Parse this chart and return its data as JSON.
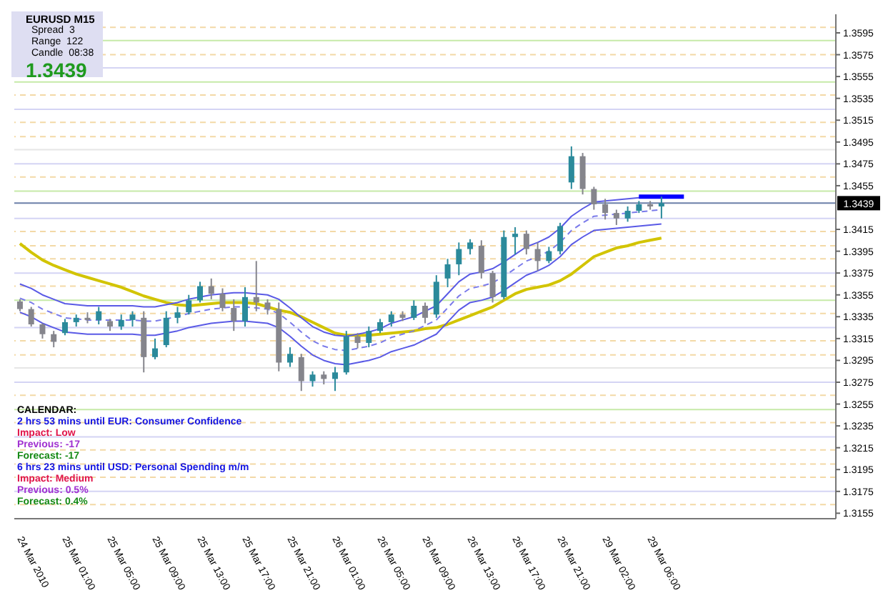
{
  "chart_data": {
    "type": "candlestick",
    "categories": [
      "24 Mar 2010",
      null,
      null,
      null,
      "25 Mar 01:00",
      null,
      null,
      null,
      "25 Mar 05:00",
      null,
      null,
      null,
      "25 Mar 09:00",
      null,
      null,
      null,
      "25 Mar 13:00",
      null,
      null,
      null,
      "25 Mar 17:00",
      null,
      null,
      null,
      "25 Mar 21:00",
      null,
      null,
      null,
      "26 Mar 01:00",
      null,
      null,
      null,
      "26 Mar 05:00",
      null,
      null,
      null,
      "26 Mar 09:00",
      null,
      null,
      null,
      "26 Mar 13:00",
      null,
      null,
      null,
      "26 Mar 17:00",
      null,
      null,
      null,
      "26 Mar 21:00",
      null,
      null,
      null,
      "29 Mar 02:00",
      null,
      null,
      null,
      "29 Mar 06:00",
      null,
      null,
      null,
      null,
      null,
      null,
      null,
      null,
      null,
      null,
      null,
      null,
      null,
      null,
      null,
      null
    ],
    "ohlc": [
      [
        1.3349,
        1.3351,
        1.334,
        1.3342
      ],
      [
        1.3342,
        1.3344,
        1.3326,
        1.3328
      ],
      [
        1.3328,
        1.3329,
        1.3315,
        1.3319
      ],
      [
        1.3319,
        1.3322,
        1.3307,
        1.3312
      ],
      [
        1.332,
        1.3333,
        1.3318,
        1.333
      ],
      [
        1.333,
        1.3337,
        1.3326,
        1.3334
      ],
      [
        1.3334,
        1.3339,
        1.3329,
        1.3332
      ],
      [
        1.3332,
        1.3344,
        1.3328,
        1.334
      ],
      [
        1.3331,
        1.3333,
        1.3322,
        1.3326
      ],
      [
        1.3326,
        1.3337,
        1.3323,
        1.3332
      ],
      [
        1.3332,
        1.334,
        1.3326,
        1.3337
      ],
      [
        1.3334,
        1.334,
        1.3284,
        1.3298
      ],
      [
        1.3298,
        1.3315,
        1.3296,
        1.3306
      ],
      [
        1.3309,
        1.334,
        1.3307,
        1.3334
      ],
      [
        1.3334,
        1.3344,
        1.3329,
        1.3339
      ],
      [
        1.3339,
        1.3355,
        1.3337,
        1.335
      ],
      [
        1.335,
        1.3367,
        1.3348,
        1.3363
      ],
      [
        1.3363,
        1.337,
        1.3351,
        1.3356
      ],
      [
        1.3356,
        1.3361,
        1.334,
        1.3343
      ],
      [
        1.3343,
        1.3351,
        1.3322,
        1.3331
      ],
      [
        1.3331,
        1.3362,
        1.3326,
        1.3353
      ],
      [
        1.3353,
        1.3386,
        1.334,
        1.3348
      ],
      [
        1.3348,
        1.3351,
        1.3337,
        1.3342
      ],
      [
        1.3342,
        1.3348,
        1.3285,
        1.3293
      ],
      [
        1.3293,
        1.3307,
        1.3289,
        1.3301
      ],
      [
        1.3298,
        1.3301,
        1.3267,
        1.3276
      ],
      [
        1.3276,
        1.3285,
        1.3271,
        1.3282
      ],
      [
        1.3282,
        1.3285,
        1.3273,
        1.3278
      ],
      [
        1.3278,
        1.3289,
        1.3267,
        1.3284
      ],
      [
        1.3284,
        1.3322,
        1.3282,
        1.3317
      ],
      [
        1.3317,
        1.332,
        1.3306,
        1.3311
      ],
      [
        1.3311,
        1.3326,
        1.3307,
        1.3322
      ],
      [
        1.3322,
        1.3333,
        1.332,
        1.333
      ],
      [
        1.333,
        1.334,
        1.3326,
        1.3337
      ],
      [
        1.3337,
        1.334,
        1.3331,
        1.3334
      ],
      [
        1.3334,
        1.335,
        1.3332,
        1.3345
      ],
      [
        1.3345,
        1.3348,
        1.3329,
        1.3334
      ],
      [
        1.3337,
        1.3373,
        1.3334,
        1.3367
      ],
      [
        1.337,
        1.3388,
        1.3362,
        1.3383
      ],
      [
        1.3383,
        1.3403,
        1.3373,
        1.3397
      ],
      [
        1.3397,
        1.3406,
        1.3392,
        1.3403
      ],
      [
        1.34,
        1.3405,
        1.337,
        1.3375
      ],
      [
        1.3375,
        1.3377,
        1.3348,
        1.3353
      ],
      [
        1.3353,
        1.3414,
        1.3351,
        1.3408
      ],
      [
        1.3408,
        1.3417,
        1.3392,
        1.3411
      ],
      [
        1.3411,
        1.3414,
        1.3392,
        1.3397
      ],
      [
        1.3397,
        1.3403,
        1.3377,
        1.3386
      ],
      [
        1.3386,
        1.3399,
        1.3384,
        1.3395
      ],
      [
        1.3395,
        1.3421,
        1.3392,
        1.3418
      ],
      [
        1.3458,
        1.3491,
        1.3452,
        1.3482
      ],
      [
        1.3482,
        1.3485,
        1.3447,
        1.3452
      ],
      [
        1.3452,
        1.3454,
        1.3433,
        1.3438
      ],
      [
        1.3438,
        1.3443,
        1.3424,
        1.343
      ],
      [
        1.343,
        1.3433,
        1.3419,
        1.3425
      ],
      [
        1.3425,
        1.3436,
        1.3422,
        1.3432
      ],
      [
        1.3432,
        1.3441,
        1.343,
        1.3438
      ],
      [
        1.3438,
        1.3441,
        1.3433,
        1.3436
      ],
      [
        1.3436,
        1.3445,
        1.3425,
        1.3439
      ],
      null,
      null,
      null,
      null,
      null,
      null,
      null,
      null,
      null,
      null,
      null,
      null,
      null,
      null,
      null
    ],
    "colors": [
      "#85858c",
      "#85858c",
      "#85858c",
      "#85858c",
      "#2b8a9b",
      "#2b8a9b",
      "#85858c",
      "#2b8a9b",
      "#85858c",
      "#2b8a9b",
      "#2b8a9b",
      "#85858c",
      "#2b8a9b",
      "#2b8a9b",
      "#2b8a9b",
      "#2b8a9b",
      "#2b8a9b",
      "#85858c",
      "#85858c",
      "#85858c",
      "#2b8a9b",
      "#85858c",
      "#85858c",
      "#85858c",
      "#2b8a9b",
      "#85858c",
      "#2b8a9b",
      "#85858c",
      "#2b8a9b",
      "#2b8a9b",
      "#85858c",
      "#2b8a9b",
      "#2b8a9b",
      "#2b8a9b",
      "#85858c",
      "#2b8a9b",
      "#85858c",
      "#2b8a9b",
      "#2b8a9b",
      "#2b8a9b",
      "#2b8a9b",
      "#85858c",
      "#85858c",
      "#2b8a9b",
      "#2b8a9b",
      "#85858c",
      "#85858c",
      "#2b8a9b",
      "#2b8a9b",
      "#2b8a9b",
      "#85858c",
      "#85858c",
      "#85858c",
      "#85858c",
      "#2b8a9b",
      "#2b8a9b",
      "#85858c",
      "#2b8a9b",
      null,
      null,
      null,
      null,
      null,
      null,
      null,
      null,
      null,
      null,
      null,
      null,
      null,
      null,
      null
    ],
    "series": [
      {
        "type": "line",
        "color": "#d2c400",
        "values": [
          1.3402,
          1.3394,
          1.3387,
          1.3382,
          1.3378,
          1.3374,
          1.3371,
          1.3368,
          1.3365,
          1.3362,
          1.3358,
          1.3354,
          1.3351,
          1.3348,
          1.3346,
          1.3345,
          1.3346,
          1.3347,
          1.3348,
          1.3348,
          1.3348,
          1.3347,
          1.3344,
          1.3341,
          1.3339,
          1.3335,
          1.333,
          1.3325,
          1.332,
          1.3318,
          1.3318,
          1.3318,
          1.3319,
          1.332,
          1.3321,
          1.3322,
          1.3324,
          1.3325,
          1.3328,
          1.3332,
          1.3336,
          1.334,
          1.3344,
          1.335,
          1.3356,
          1.336,
          1.3362,
          1.3364,
          1.3368,
          1.3374,
          1.3382,
          1.339,
          1.3394,
          1.3398,
          1.34,
          1.3403,
          1.3405,
          1.3407,
          null,
          null,
          null,
          null,
          null,
          null,
          null,
          null,
          null,
          null,
          null,
          null,
          null,
          null,
          null
        ]
      },
      {
        "type": "line",
        "color": "#5a5ae6",
        "values": [
          1.3365,
          1.3361,
          1.3355,
          1.3351,
          1.3347,
          1.3346,
          1.3345,
          1.3345,
          1.3345,
          1.3345,
          1.3345,
          1.3344,
          1.3344,
          1.3346,
          1.3348,
          1.3351,
          1.3353,
          1.3355,
          1.3356,
          1.3357,
          1.3357,
          1.3356,
          1.3355,
          1.3351,
          1.3343,
          1.3334,
          1.3326,
          1.3321,
          1.3318,
          1.3317,
          1.3319,
          1.3321,
          1.3324,
          1.3329,
          1.3332,
          1.3335,
          1.334,
          1.3345,
          1.3356,
          1.3367,
          1.3374,
          1.3376,
          1.3379,
          1.3385,
          1.3392,
          1.3399,
          1.3403,
          1.3408,
          1.3416,
          1.3427,
          1.3434,
          1.344,
          1.3441,
          1.3442,
          1.3443,
          1.3444,
          1.3445,
          1.3446,
          null,
          null,
          null,
          null,
          null,
          null,
          null,
          null,
          null,
          null,
          null,
          null,
          null,
          null,
          null
        ]
      },
      {
        "type": "line",
        "color": "#7a7aea",
        "line_style": "dashed",
        "values": [
          1.3352,
          1.3348,
          1.3342,
          1.3338,
          1.3334,
          1.3333,
          1.3332,
          1.3332,
          1.3332,
          1.3332,
          1.3332,
          1.3331,
          1.3331,
          1.3333,
          1.3335,
          1.3338,
          1.334,
          1.3342,
          1.3343,
          1.3344,
          1.3344,
          1.3343,
          1.3342,
          1.3338,
          1.333,
          1.3321,
          1.3313,
          1.3308,
          1.3305,
          1.3304,
          1.3306,
          1.3308,
          1.3311,
          1.3316,
          1.3319,
          1.3322,
          1.3327,
          1.3332,
          1.3343,
          1.3354,
          1.3361,
          1.3363,
          1.3366,
          1.3372,
          1.3379,
          1.3386,
          1.339,
          1.3395,
          1.3403,
          1.3414,
          1.3421,
          1.3427,
          1.3428,
          1.3429,
          1.343,
          1.3431,
          1.3432,
          1.3433,
          null,
          null,
          null,
          null,
          null,
          null,
          null,
          null,
          null,
          null,
          null,
          null,
          null,
          null,
          null
        ]
      },
      {
        "type": "line",
        "color": "#5a5ae6",
        "values": [
          1.3339,
          1.3335,
          1.3329,
          1.3325,
          1.3321,
          1.332,
          1.3319,
          1.3319,
          1.3319,
          1.3319,
          1.3319,
          1.3318,
          1.3318,
          1.332,
          1.3322,
          1.3325,
          1.3327,
          1.3329,
          1.333,
          1.3331,
          1.3331,
          1.333,
          1.3329,
          1.3325,
          1.3317,
          1.3308,
          1.33,
          1.3295,
          1.3292,
          1.3291,
          1.3293,
          1.3295,
          1.3298,
          1.3303,
          1.3306,
          1.3309,
          1.3314,
          1.3319,
          1.333,
          1.3341,
          1.3348,
          1.335,
          1.3353,
          1.3359,
          1.3366,
          1.3373,
          1.3377,
          1.3382,
          1.339,
          1.3401,
          1.3408,
          1.3414,
          1.3415,
          1.3416,
          1.3417,
          1.3418,
          1.3419,
          1.342,
          null,
          null,
          null,
          null,
          null,
          null,
          null,
          null,
          null,
          null,
          null,
          null,
          null,
          null,
          null
        ]
      },
      {
        "type": "line",
        "color": "#0000ff",
        "values": [
          null,
          null,
          null,
          null,
          null,
          null,
          null,
          null,
          null,
          null,
          null,
          null,
          null,
          null,
          null,
          null,
          null,
          null,
          null,
          null,
          null,
          null,
          null,
          null,
          null,
          null,
          null,
          null,
          null,
          null,
          null,
          null,
          null,
          null,
          null,
          null,
          null,
          null,
          null,
          null,
          null,
          null,
          null,
          null,
          null,
          null,
          null,
          null,
          null,
          null,
          null,
          null,
          null,
          null,
          null,
          1.3445,
          1.3445,
          1.3445,
          1.3445,
          1.3445,
          null,
          null,
          null,
          null,
          null,
          null,
          null,
          null,
          null,
          null,
          null,
          null,
          null
        ]
      }
    ],
    "ylim": [
      1.315,
      1.3612
    ],
    "yticks": [
      1.3155,
      1.3175,
      1.3195,
      1.3215,
      1.3235,
      1.3255,
      1.3275,
      1.3295,
      1.3315,
      1.3335,
      1.3355,
      1.3375,
      1.3395,
      1.3415,
      1.3455,
      1.3475,
      1.3495,
      1.3515,
      1.3535,
      1.3555,
      1.3575,
      1.3595
    ],
    "ref_lines": [
      {
        "axis": "y",
        "value": 1.36,
        "color": "#f3d9a6",
        "line_style": "dashed"
      },
      {
        "axis": "y",
        "value": 1.3588,
        "color": "#c6eaa8",
        "line_style": "solid"
      },
      {
        "axis": "y",
        "value": 1.3575,
        "color": "#f3d9a6",
        "line_style": "dashed"
      },
      {
        "axis": "y",
        "value": 1.3563,
        "color": "#d4d4f4",
        "line_style": "solid"
      },
      {
        "axis": "y",
        "value": 1.355,
        "color": "#c6eaa8",
        "line_style": "solid"
      },
      {
        "axis": "y",
        "value": 1.3538,
        "color": "#f3d9a6",
        "line_style": "dashed"
      },
      {
        "axis": "y",
        "value": 1.3525,
        "color": "#d4d4f4",
        "line_style": "solid"
      },
      {
        "axis": "y",
        "value": 1.3513,
        "color": "#f3d9a6",
        "line_style": "dashed"
      },
      {
        "axis": "y",
        "value": 1.35,
        "color": "#f3d9a6",
        "line_style": "dashed"
      },
      {
        "axis": "y",
        "value": 1.3488,
        "color": "#e6e6e6",
        "line_style": "solid"
      },
      {
        "axis": "y",
        "value": 1.3475,
        "color": "#d4d4f4",
        "line_style": "solid"
      },
      {
        "axis": "y",
        "value": 1.3463,
        "color": "#f3d9a6",
        "line_style": "dashed"
      },
      {
        "axis": "y",
        "value": 1.345,
        "color": "#c6eaa8",
        "line_style": "solid"
      },
      {
        "axis": "y",
        "value": 1.3425,
        "color": "#d4d4f4",
        "line_style": "solid"
      },
      {
        "axis": "y",
        "value": 1.3413,
        "color": "#f3d9a6",
        "line_style": "dashed"
      },
      {
        "axis": "y",
        "value": 1.34,
        "color": "#f3d9a6",
        "line_style": "dashed"
      },
      {
        "axis": "y",
        "value": 1.3388,
        "color": "#f3d9a6",
        "line_style": "dashed"
      },
      {
        "axis": "y",
        "value": 1.3375,
        "color": "#d4d4f4",
        "line_style": "solid"
      },
      {
        "axis": "y",
        "value": 1.3363,
        "color": "#f3d9a6",
        "line_style": "dashed"
      },
      {
        "axis": "y",
        "value": 1.335,
        "color": "#c6eaa8",
        "line_style": "solid"
      },
      {
        "axis": "y",
        "value": 1.3338,
        "color": "#f3d9a6",
        "line_style": "dashed"
      },
      {
        "axis": "y",
        "value": 1.3325,
        "color": "#d4d4f4",
        "line_style": "solid"
      },
      {
        "axis": "y",
        "value": 1.3313,
        "color": "#f3d9a6",
        "line_style": "dashed"
      },
      {
        "axis": "y",
        "value": 1.33,
        "color": "#f3d9a6",
        "line_style": "dashed"
      },
      {
        "axis": "y",
        "value": 1.3288,
        "color": "#e6e6e6",
        "line_style": "solid"
      },
      {
        "axis": "y",
        "value": 1.3275,
        "color": "#d4d4f4",
        "line_style": "solid"
      },
      {
        "axis": "y",
        "value": 1.3263,
        "color": "#f3d9a6",
        "line_style": "dashed"
      },
      {
        "axis": "y",
        "value": 1.325,
        "color": "#c6eaa8",
        "line_style": "solid"
      },
      {
        "axis": "y",
        "value": 1.3238,
        "color": "#f3d9a6",
        "line_style": "dashed"
      },
      {
        "axis": "y",
        "value": 1.3225,
        "color": "#d4d4f4",
        "line_style": "solid"
      },
      {
        "axis": "y",
        "value": 1.3213,
        "color": "#f3d9a6",
        "line_style": "dashed"
      },
      {
        "axis": "y",
        "value": 1.32,
        "color": "#f3d9a6",
        "line_style": "dashed"
      },
      {
        "axis": "y",
        "value": 1.3188,
        "color": "#f3d9a6",
        "line_style": "dashed"
      },
      {
        "axis": "y",
        "value": 1.3175,
        "color": "#d4d4f4",
        "line_style": "solid"
      },
      {
        "axis": "y",
        "value": 1.3163,
        "color": "#f3d9a6",
        "line_style": "dashed"
      },
      {
        "axis": "y",
        "value": 1.3439,
        "label": "1.3439",
        "color": "#6b7fa8",
        "line_style": "solid"
      }
    ],
    "annotations": [
      "EURUSD  M15",
      "Spread  3",
      "Range  122",
      "Candle  08:38",
      "1.3439",
      "CALENDAR:",
      "2 hrs 53 mins until EUR: Consumer Confidence",
      "Impact: Low",
      "Previous: -17",
      "Forecast: -17",
      "6 hrs 23 mins until USD: Personal Spending m/m",
      "Impact: Medium",
      "Previous: 0.5%",
      "Forecast: 0.4%"
    ],
    "grid": false,
    "legend": false,
    "marker": "none"
  }
}
